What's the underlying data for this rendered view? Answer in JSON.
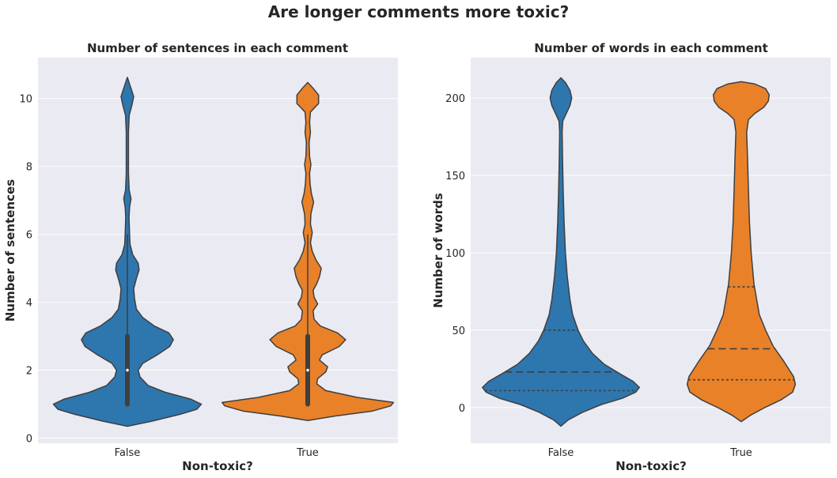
{
  "suptitle": "Are longer comments more toxic?",
  "colors": {
    "background": "#eaeaf2",
    "grid": "#ffffff",
    "outline": "#3f3f3f",
    "false_fill": "#2e76ae",
    "true_fill": "#e98129"
  },
  "chart_data": [
    {
      "type": "violin",
      "title": "Number of sentences in each comment",
      "xlabel": "Non-toxic?",
      "ylabel": "Number of sentences",
      "categories": [
        "False",
        "True"
      ],
      "ylim": [
        -0.15,
        11.2
      ],
      "yticks": [
        0,
        2,
        4,
        6,
        8,
        10
      ],
      "inner": "box",
      "grid": true,
      "series": [
        {
          "category": "False",
          "quartiles": [
            1,
            2,
            3
          ],
          "whiskers": [
            1,
            6
          ],
          "density": [
            [
              0.35,
              0.0
            ],
            [
              0.5,
              0.27
            ],
            [
              0.7,
              0.58
            ],
            [
              0.85,
              0.77
            ],
            [
              1.0,
              0.82
            ],
            [
              1.15,
              0.7
            ],
            [
              1.35,
              0.42
            ],
            [
              1.55,
              0.23
            ],
            [
              1.8,
              0.14
            ],
            [
              2.0,
              0.12
            ],
            [
              2.2,
              0.17
            ],
            [
              2.45,
              0.33
            ],
            [
              2.7,
              0.47
            ],
            [
              2.9,
              0.51
            ],
            [
              3.1,
              0.46
            ],
            [
              3.3,
              0.3
            ],
            [
              3.55,
              0.17
            ],
            [
              3.8,
              0.1
            ],
            [
              4.1,
              0.08
            ],
            [
              4.4,
              0.07
            ],
            [
              4.7,
              0.1
            ],
            [
              4.95,
              0.13
            ],
            [
              5.15,
              0.12
            ],
            [
              5.4,
              0.06
            ],
            [
              5.7,
              0.03
            ],
            [
              6.0,
              0.025
            ],
            [
              6.5,
              0.018
            ],
            [
              6.8,
              0.025
            ],
            [
              7.05,
              0.04
            ],
            [
              7.3,
              0.02
            ],
            [
              7.8,
              0.012
            ],
            [
              8.4,
              0.012
            ],
            [
              9.0,
              0.012
            ],
            [
              9.5,
              0.02
            ],
            [
              9.8,
              0.05
            ],
            [
              10.05,
              0.07
            ],
            [
              10.3,
              0.04
            ],
            [
              10.62,
              0.0
            ]
          ]
        },
        {
          "category": "True",
          "quartiles": [
            1,
            2,
            3
          ],
          "whiskers": [
            1,
            6
          ],
          "density": [
            [
              0.52,
              0.0
            ],
            [
              0.65,
              0.3
            ],
            [
              0.8,
              0.72
            ],
            [
              0.95,
              0.92
            ],
            [
              1.05,
              0.95
            ],
            [
              1.2,
              0.55
            ],
            [
              1.4,
              0.2
            ],
            [
              1.6,
              0.1
            ],
            [
              1.75,
              0.11
            ],
            [
              1.95,
              0.2
            ],
            [
              2.1,
              0.22
            ],
            [
              2.3,
              0.13
            ],
            [
              2.45,
              0.16
            ],
            [
              2.7,
              0.35
            ],
            [
              2.9,
              0.42
            ],
            [
              3.1,
              0.33
            ],
            [
              3.3,
              0.14
            ],
            [
              3.5,
              0.07
            ],
            [
              3.75,
              0.06
            ],
            [
              3.95,
              0.11
            ],
            [
              4.15,
              0.07
            ],
            [
              4.35,
              0.06
            ],
            [
              4.55,
              0.1
            ],
            [
              4.75,
              0.13
            ],
            [
              5.0,
              0.15
            ],
            [
              5.25,
              0.09
            ],
            [
              5.5,
              0.05
            ],
            [
              5.75,
              0.03
            ],
            [
              6.05,
              0.05
            ],
            [
              6.3,
              0.03
            ],
            [
              6.6,
              0.035
            ],
            [
              6.95,
              0.065
            ],
            [
              7.2,
              0.04
            ],
            [
              7.5,
              0.025
            ],
            [
              7.8,
              0.02
            ],
            [
              8.05,
              0.035
            ],
            [
              8.3,
              0.02
            ],
            [
              8.7,
              0.015
            ],
            [
              9.0,
              0.03
            ],
            [
              9.3,
              0.02
            ],
            [
              9.6,
              0.03
            ],
            [
              9.85,
              0.12
            ],
            [
              10.1,
              0.12
            ],
            [
              10.3,
              0.06
            ],
            [
              10.47,
              0.0
            ]
          ]
        }
      ]
    },
    {
      "type": "violin",
      "title": "Number of words in each comment",
      "xlabel": "Non-toxic?",
      "ylabel": "Number of words",
      "categories": [
        "False",
        "True"
      ],
      "ylim": [
        -23,
        226
      ],
      "yticks": [
        0,
        50,
        100,
        150,
        200
      ],
      "inner": "quartiles",
      "grid": true,
      "series": [
        {
          "category": "False",
          "quartiles": [
            11,
            23,
            50
          ],
          "density": [
            [
              -12,
              0.0
            ],
            [
              -8,
              0.08
            ],
            [
              -3,
              0.24
            ],
            [
              2,
              0.45
            ],
            [
              6,
              0.68
            ],
            [
              10,
              0.83
            ],
            [
              13,
              0.87
            ],
            [
              17,
              0.8
            ],
            [
              22,
              0.65
            ],
            [
              28,
              0.48
            ],
            [
              35,
              0.35
            ],
            [
              43,
              0.25
            ],
            [
              50,
              0.19
            ],
            [
              60,
              0.13
            ],
            [
              70,
              0.1
            ],
            [
              85,
              0.07
            ],
            [
              100,
              0.05
            ],
            [
              120,
              0.035
            ],
            [
              140,
              0.025
            ],
            [
              160,
              0.018
            ],
            [
              178,
              0.014
            ],
            [
              185,
              0.02
            ],
            [
              190,
              0.06
            ],
            [
              195,
              0.1
            ],
            [
              200,
              0.12
            ],
            [
              205,
              0.1
            ],
            [
              210,
              0.05
            ],
            [
              213,
              0.0
            ]
          ]
        },
        {
          "category": "True",
          "quartiles": [
            18,
            38,
            78
          ],
          "density": [
            [
              -9,
              0.0
            ],
            [
              -5,
              0.1
            ],
            [
              0,
              0.26
            ],
            [
              5,
              0.44
            ],
            [
              10,
              0.57
            ],
            [
              15,
              0.6
            ],
            [
              20,
              0.58
            ],
            [
              30,
              0.47
            ],
            [
              40,
              0.35
            ],
            [
              50,
              0.27
            ],
            [
              60,
              0.2
            ],
            [
              70,
              0.17
            ],
            [
              80,
              0.14
            ],
            [
              100,
              0.11
            ],
            [
              120,
              0.09
            ],
            [
              140,
              0.08
            ],
            [
              160,
              0.07
            ],
            [
              178,
              0.06
            ],
            [
              186,
              0.08
            ],
            [
              190,
              0.15
            ],
            [
              194,
              0.25
            ],
            [
              198,
              0.3
            ],
            [
              202,
              0.31
            ],
            [
              206,
              0.27
            ],
            [
              209,
              0.15
            ],
            [
              210.5,
              0.0
            ]
          ]
        }
      ]
    }
  ]
}
